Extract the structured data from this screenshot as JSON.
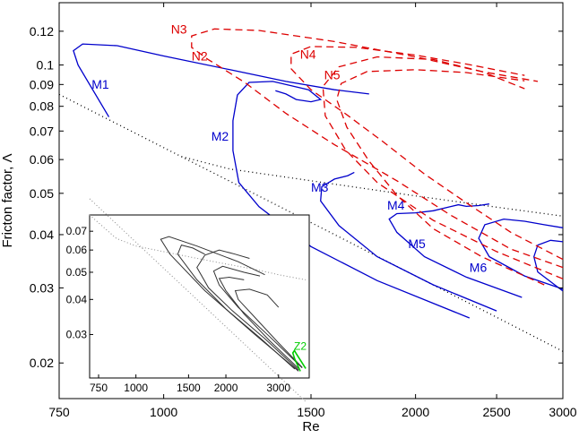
{
  "chart_data": {
    "type": "line",
    "xlabel": "Re",
    "ylabel": "Fricton factor, Λ",
    "xscale": "log",
    "yscale": "log",
    "xlim": [
      750,
      3000
    ],
    "ylim": [
      0.0165,
      0.14
    ],
    "xticks": [
      {
        "value": 750,
        "label": "750"
      },
      {
        "value": 1000,
        "label": "1000"
      },
      {
        "value": 1500,
        "label": "1500"
      },
      {
        "value": 2000,
        "label": "2000"
      },
      {
        "value": 2500,
        "label": "2500"
      },
      {
        "value": 3000,
        "label": "3000"
      }
    ],
    "yticks": [
      {
        "value": 0.02,
        "label": "0.02"
      },
      {
        "value": 0.03,
        "label": "0.03"
      },
      {
        "value": 0.04,
        "label": "0.04"
      },
      {
        "value": 0.05,
        "label": "0.05"
      },
      {
        "value": 0.06,
        "label": "0.06"
      },
      {
        "value": 0.07,
        "label": "0.07"
      },
      {
        "value": 0.08,
        "label": "0.08"
      },
      {
        "value": 0.09,
        "label": "0.09"
      },
      {
        "value": 0.1,
        "label": "0.1"
      },
      {
        "value": 0.12,
        "label": "0.12"
      }
    ],
    "colors": {
      "M": "#0000cc",
      "N": "#dd0000",
      "Z": "#00cc00",
      "reference": "#000000",
      "inset": "#333333"
    },
    "reference_lines": [
      {
        "name": "laminar",
        "style": "dotted",
        "points": [
          [
            750,
            0.0853
          ],
          [
            1000,
            0.064
          ],
          [
            1500,
            0.0427
          ],
          [
            2000,
            0.032
          ],
          [
            2500,
            0.0256
          ],
          [
            3000,
            0.0213
          ]
        ]
      },
      {
        "name": "turbulent",
        "style": "dotted",
        "points": [
          [
            1050,
            0.061
          ],
          [
            1200,
            0.057
          ],
          [
            1500,
            0.0535
          ],
          [
            2000,
            0.0493
          ],
          [
            2500,
            0.0464
          ],
          [
            3000,
            0.0442
          ]
        ]
      }
    ],
    "series": [
      {
        "name": "M1",
        "label": "M1",
        "group": "M",
        "style": "solid",
        "label_at": [
          820,
          0.088
        ],
        "points": [
          [
            860,
            0.0755
          ],
          [
            790,
            0.1
          ],
          [
            780,
            0.108
          ],
          [
            800,
            0.112
          ],
          [
            880,
            0.111
          ],
          [
            1000,
            0.105
          ],
          [
            1200,
            0.0975
          ],
          [
            1400,
            0.0915
          ],
          [
            1600,
            0.0875
          ],
          [
            1760,
            0.0855
          ]
        ]
      },
      {
        "name": "M2",
        "label": "M2",
        "group": "M",
        "style": "solid",
        "label_at": [
          1140,
          0.0665
        ],
        "points": [
          [
            2320,
            0.0255
          ],
          [
            1800,
            0.0312
          ],
          [
            1500,
            0.0375
          ],
          [
            1300,
            0.0465
          ],
          [
            1230,
            0.053
          ],
          [
            1210,
            0.063
          ],
          [
            1210,
            0.074
          ],
          [
            1225,
            0.085
          ],
          [
            1265,
            0.091
          ],
          [
            1350,
            0.0915
          ],
          [
            1490,
            0.0875
          ],
          [
            1540,
            0.083
          ],
          [
            1500,
            0.082
          ],
          [
            1440,
            0.083
          ],
          [
            1400,
            0.0855
          ],
          [
            1360,
            0.087
          ]
        ]
      },
      {
        "name": "M3",
        "label": "M3",
        "group": "M",
        "style": "solid",
        "label_at": [
          1500,
          0.0505
        ],
        "points": [
          [
            2500,
            0.0265
          ],
          [
            2100,
            0.0305
          ],
          [
            1800,
            0.0355
          ],
          [
            1620,
            0.042
          ],
          [
            1540,
            0.048
          ],
          [
            1545,
            0.0518
          ],
          [
            1600,
            0.054
          ],
          [
            1660,
            0.055
          ],
          [
            1690,
            0.056
          ]
        ]
      },
      {
        "name": "M4",
        "label": "M4",
        "group": "M",
        "style": "solid",
        "label_at": [
          1850,
          0.0458
        ],
        "points": [
          [
            2680,
            0.0285
          ],
          [
            2300,
            0.0318
          ],
          [
            2050,
            0.0355
          ],
          [
            1900,
            0.0405
          ],
          [
            1860,
            0.0435
          ],
          [
            1900,
            0.0448
          ],
          [
            2000,
            0.045
          ],
          [
            2100,
            0.0455
          ],
          [
            2200,
            0.0465
          ],
          [
            2250,
            0.047
          ],
          [
            2300,
            0.0466
          ],
          [
            2380,
            0.0468
          ],
          [
            2450,
            0.0472
          ]
        ]
      },
      {
        "name": "M5",
        "label": "M5",
        "group": "M",
        "style": "solid",
        "label_at": [
          1960,
          0.0372
        ],
        "points": [
          [
            3000,
            0.0298
          ],
          [
            2700,
            0.032
          ],
          [
            2450,
            0.0355
          ],
          [
            2380,
            0.0392
          ],
          [
            2420,
            0.0422
          ],
          [
            2550,
            0.0435
          ],
          [
            2700,
            0.043
          ],
          [
            2850,
            0.0422
          ],
          [
            3000,
            0.0415
          ]
        ]
      },
      {
        "name": "M6",
        "label": "M6",
        "group": "M",
        "style": "solid",
        "label_at": [
          2320,
          0.0327
        ],
        "points": [
          [
            3000,
            0.0295
          ],
          [
            2800,
            0.0327
          ],
          [
            2770,
            0.0355
          ],
          [
            2800,
            0.0378
          ],
          [
            2900,
            0.0388
          ],
          [
            3000,
            0.0385
          ]
        ]
      },
      {
        "name": "N2",
        "label": "N2",
        "group": "N",
        "style": "dashed",
        "label_at": [
          1080,
          0.1025
        ],
        "points": [
          [
            3000,
            0.0315
          ],
          [
            2500,
            0.0365
          ],
          [
            2100,
            0.0432
          ],
          [
            1800,
            0.053
          ],
          [
            1650,
            0.0632
          ],
          [
            1560,
            0.076
          ],
          [
            1550,
            0.089
          ],
          [
            1620,
            0.099
          ],
          [
            1800,
            0.1045
          ],
          [
            2100,
            0.103
          ],
          [
            2400,
            0.0965
          ],
          [
            2700,
            0.088
          ]
        ]
      },
      {
        "name": "N3",
        "label": "N3",
        "group": "N",
        "style": "dashed",
        "label_at": [
          1020,
          0.1185
        ],
        "points": [
          [
            3000,
            0.0335
          ],
          [
            2600,
            0.037
          ],
          [
            2200,
            0.0445
          ],
          [
            1900,
            0.0535
          ],
          [
            1600,
            0.065
          ],
          [
            1400,
            0.077
          ],
          [
            1250,
            0.091
          ],
          [
            1130,
            0.103
          ],
          [
            1080,
            0.11
          ],
          [
            1080,
            0.117
          ],
          [
            1150,
            0.1215
          ],
          [
            1300,
            0.1205
          ],
          [
            1600,
            0.1135
          ],
          [
            2000,
            0.1045
          ],
          [
            2400,
            0.0965
          ],
          [
            2800,
            0.0915
          ]
        ]
      },
      {
        "name": "N4",
        "label": "N4",
        "group": "N",
        "style": "dashed",
        "label_at": [
          1455,
          0.1035
        ],
        "points": [
          [
            3000,
            0.035
          ],
          [
            2600,
            0.0405
          ],
          [
            2300,
            0.0475
          ],
          [
            2050,
            0.0555
          ],
          [
            1830,
            0.066
          ],
          [
            1650,
            0.0768
          ],
          [
            1500,
            0.0875
          ],
          [
            1420,
            0.098
          ],
          [
            1420,
            0.106
          ],
          [
            1500,
            0.1105
          ],
          [
            1700,
            0.11
          ],
          [
            2000,
            0.1055
          ],
          [
            2300,
            0.1005
          ],
          [
            2700,
            0.0945
          ]
        ]
      },
      {
        "name": "N5",
        "label": "N5",
        "group": "N",
        "style": "dashed",
        "label_at": [
          1555,
          0.0925
        ],
        "points": [
          [
            2850,
            0.0305
          ],
          [
            2400,
            0.0355
          ],
          [
            2100,
            0.0413
          ],
          [
            1900,
            0.0495
          ],
          [
            1760,
            0.0595
          ],
          [
            1655,
            0.0715
          ],
          [
            1610,
            0.083
          ],
          [
            1630,
            0.0905
          ],
          [
            1750,
            0.0965
          ],
          [
            2000,
            0.0975
          ],
          [
            2300,
            0.096
          ],
          [
            2700,
            0.0918
          ]
        ]
      }
    ],
    "inset": {
      "xscale": "log",
      "yscale": "log",
      "xlim": [
        700,
        3800
      ],
      "ylim": [
        0.021,
        0.08
      ],
      "xticks": [
        {
          "value": 750,
          "label": "750"
        },
        {
          "value": 1000,
          "label": "1000"
        },
        {
          "value": 1500,
          "label": "1500"
        },
        {
          "value": 2000,
          "label": "2000"
        },
        {
          "value": 3000,
          "label": "3000"
        }
      ],
      "yticks": [
        {
          "value": 0.03,
          "label": "0.03"
        },
        {
          "value": 0.04,
          "label": "0.04"
        },
        {
          "value": 0.05,
          "label": "0.05"
        },
        {
          "value": 0.06,
          "label": "0.06"
        },
        {
          "value": 0.07,
          "label": "0.07"
        }
      ],
      "reference_lines": [
        {
          "name": "laminar",
          "style": "dotted",
          "points": [
            [
              700,
              0.0914
            ],
            [
              3700,
              0.0173
            ]
          ]
        },
        {
          "name": "turbulent",
          "style": "dotted",
          "points": [
            [
              700,
              0.08
            ],
            [
              860,
              0.066
            ],
            [
              1000,
              0.062
            ],
            [
              1500,
              0.0568
            ],
            [
              2000,
              0.0535
            ],
            [
              2500,
              0.0512
            ],
            [
              3000,
              0.049
            ],
            [
              3700,
              0.047
            ]
          ]
        }
      ],
      "series": [
        {
          "name": "inset-curve-1",
          "style": "solid",
          "points": [
            [
              3500,
              0.0222
            ],
            [
              2500,
              0.03
            ],
            [
              1700,
              0.043
            ],
            [
              1300,
              0.058
            ],
            [
              1210,
              0.0655
            ],
            [
              1290,
              0.067
            ],
            [
              1600,
              0.062
            ],
            [
              2200,
              0.0545
            ],
            [
              2700,
              0.049
            ]
          ]
        },
        {
          "name": "inset-curve-2",
          "style": "solid",
          "points": [
            [
              3400,
              0.0226
            ],
            [
              2600,
              0.0292
            ],
            [
              2000,
              0.037
            ],
            [
              1600,
              0.047
            ],
            [
              1380,
              0.058
            ],
            [
              1420,
              0.0625
            ],
            [
              1550,
              0.061
            ],
            [
              1700,
              0.058
            ]
          ]
        },
        {
          "name": "inset-curve-3",
          "style": "solid",
          "points": [
            [
              3500,
              0.0224
            ],
            [
              2700,
              0.029
            ],
            [
              2100,
              0.0365
            ],
            [
              1750,
              0.044
            ],
            [
              1600,
              0.052
            ],
            [
              1700,
              0.0575
            ],
            [
              1900,
              0.06
            ],
            [
              2150,
              0.058
            ],
            [
              2400,
              0.056
            ]
          ]
        },
        {
          "name": "inset-curve-4",
          "style": "solid",
          "points": [
            [
              3600,
              0.0228
            ],
            [
              2800,
              0.0295
            ],
            [
              2200,
              0.0375
            ],
            [
              1900,
              0.045
            ],
            [
              1820,
              0.0505
            ],
            [
              1950,
              0.0525
            ],
            [
              2300,
              0.05
            ],
            [
              2600,
              0.0485
            ]
          ]
        },
        {
          "name": "inset-curve-5",
          "style": "solid",
          "points": [
            [
              3500,
              0.0227
            ],
            [
              2800,
              0.0285
            ],
            [
              2300,
              0.0355
            ],
            [
              2000,
              0.043
            ],
            [
              1900,
              0.0475
            ],
            [
              2050,
              0.048
            ],
            [
              2300,
              0.047
            ]
          ]
        },
        {
          "name": "inset-curve-6",
          "style": "solid",
          "points": [
            [
              3600,
              0.0229
            ],
            [
              3000,
              0.028
            ],
            [
              2500,
              0.0345
            ],
            [
              2200,
              0.04
            ],
            [
              2150,
              0.043
            ],
            [
              2400,
              0.0435
            ],
            [
              2750,
              0.0415
            ],
            [
              3000,
              0.0375
            ]
          ]
        }
      ],
      "highlight": {
        "name": "Z2",
        "label": "Z2",
        "label_at": [
          3380,
          0.0265
        ],
        "points": [
          [
            3550,
            0.0222
          ],
          [
            3400,
            0.0245
          ],
          [
            3350,
            0.0258
          ],
          [
            3390,
            0.0263
          ],
          [
            3450,
            0.0255
          ],
          [
            3700,
            0.0227
          ]
        ]
      }
    }
  }
}
